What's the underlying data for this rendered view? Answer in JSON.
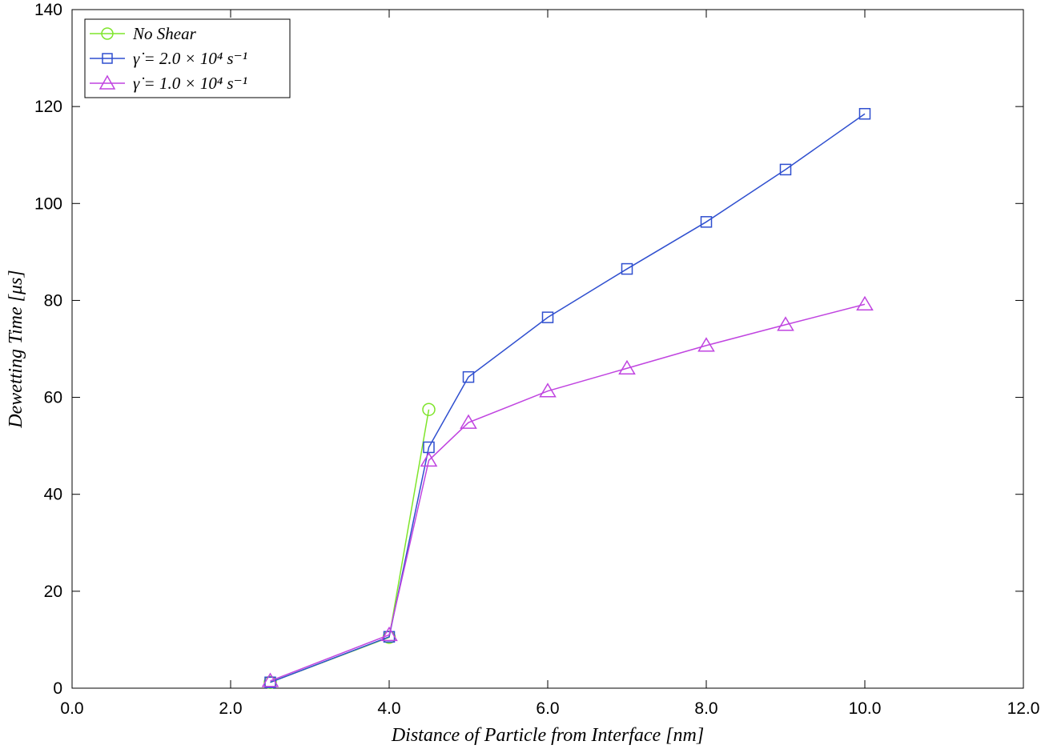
{
  "chart_data": {
    "type": "line",
    "title": "",
    "xlabel": "Distance of Particle from Interface [nm]",
    "ylabel": "Dewetting Time [μs]",
    "xlim": [
      0,
      12
    ],
    "ylim": [
      0,
      140
    ],
    "xticks": [
      0,
      2,
      4,
      6,
      8,
      10,
      12
    ],
    "xtick_labels": [
      "0.0",
      "2.0",
      "4.0",
      "6.0",
      "8.0",
      "10.0",
      "12.0"
    ],
    "yticks": [
      0,
      20,
      40,
      60,
      80,
      100,
      120,
      140
    ],
    "ytick_labels": [
      "0",
      "20",
      "40",
      "60",
      "80",
      "100",
      "120",
      "140"
    ],
    "grid": false,
    "legend_position": "top-left",
    "series": [
      {
        "name": "No Shear",
        "marker": "circle",
        "color": "#7fe52b",
        "x": [
          2.5,
          4.0,
          4.5
        ],
        "y": [
          1.2,
          10.5,
          57.5
        ]
      },
      {
        "name": "γ̇ = 2.0 × 10⁴ s⁻¹",
        "marker": "square",
        "color": "#2f4fcf",
        "x": [
          2.5,
          4.0,
          4.5,
          5.0,
          6.0,
          7.0,
          8.0,
          9.0,
          10.0
        ],
        "y": [
          1.2,
          10.6,
          49.7,
          64.2,
          76.5,
          86.5,
          96.2,
          107.0,
          118.5
        ]
      },
      {
        "name": "γ̇ = 1.0 × 10⁴ s⁻¹",
        "marker": "triangle",
        "color": "#c044e0",
        "x": [
          2.5,
          4.0,
          4.5,
          5.0,
          6.0,
          7.0,
          8.0,
          9.0,
          10.0
        ],
        "y": [
          1.5,
          11.0,
          47.0,
          54.8,
          61.3,
          66.0,
          70.7,
          75.0,
          79.2
        ]
      }
    ]
  }
}
